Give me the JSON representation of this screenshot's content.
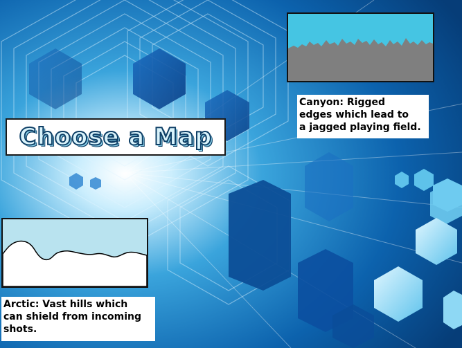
{
  "screen": {
    "title": "Choose a Map"
  },
  "maps": [
    {
      "id": "canyon",
      "description": "Canyon: Rigged\nedges which lead to\na jagged playing field.",
      "colors": {
        "sky": "#45c5e3",
        "ground": "#7f7f7f"
      }
    },
    {
      "id": "arctic",
      "description": "Arctic: Vast hills which\ncan shield from incoming\nshots.",
      "colors": {
        "sky": "#b9e3ef",
        "ground": "#ffffff"
      }
    }
  ],
  "theme": {
    "background": "#0a5ea8",
    "accent": "#7fd3f0",
    "title_fill": "#d9f3fb",
    "title_outline": "#0e3f66"
  },
  "icons": {
    "background": "abstract-hexagon-burst",
    "canyon_preview": "jagged-terrain",
    "arctic_preview": "rolling-hills"
  }
}
